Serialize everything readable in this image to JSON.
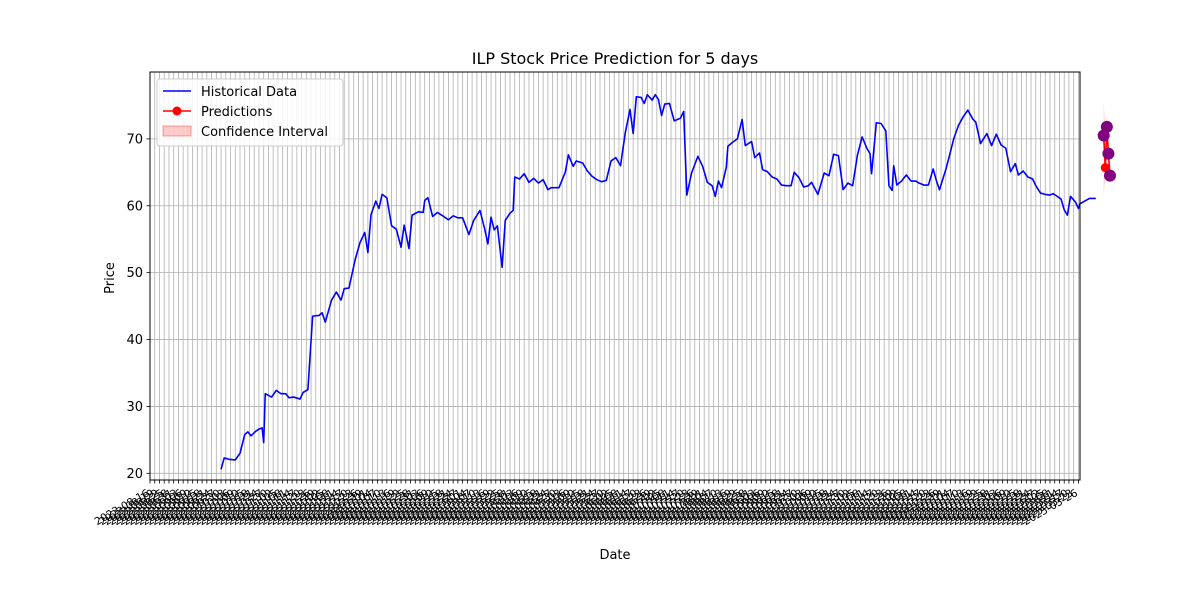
{
  "chart_data": {
    "type": "line",
    "title": "ILP Stock Price Prediction for 5 days",
    "xlabel": "Date",
    "ylabel": "Price",
    "ylim": [
      19,
      80
    ],
    "yticks": [
      20,
      30,
      40,
      50,
      60,
      70
    ],
    "grid": true,
    "legend_position": "top-left",
    "x_start": "2023-08-16",
    "x_end": "2025-03-27",
    "xtick_start": "2023-08-16",
    "xtick_end": "2025-03-27",
    "xtick_step_days": 3,
    "series": [
      {
        "name": "Historical Data",
        "color": "#0000ff",
        "points": [
          [
            "2023-09-30",
            20.6
          ],
          [
            "2023-10-02",
            22.3
          ],
          [
            "2023-10-05",
            22.1
          ],
          [
            "2023-10-09",
            22.0
          ],
          [
            "2023-10-12",
            23.0
          ],
          [
            "2023-10-15",
            25.8
          ],
          [
            "2023-10-17",
            26.2
          ],
          [
            "2023-10-19",
            25.6
          ],
          [
            "2023-10-22",
            26.3
          ],
          [
            "2023-10-24",
            26.6
          ],
          [
            "2023-10-26",
            26.8
          ],
          [
            "2023-10-27",
            24.6
          ],
          [
            "2023-10-28",
            31.9
          ],
          [
            "2023-11-01",
            31.4
          ],
          [
            "2023-11-04",
            32.4
          ],
          [
            "2023-11-07",
            31.9
          ],
          [
            "2023-11-10",
            31.9
          ],
          [
            "2023-11-12",
            31.3
          ],
          [
            "2023-11-15",
            31.4
          ],
          [
            "2023-11-19",
            31.1
          ],
          [
            "2023-11-21",
            32.1
          ],
          [
            "2023-11-24",
            32.5
          ],
          [
            "2023-11-27",
            43.5
          ],
          [
            "2023-12-01",
            43.6
          ],
          [
            "2023-12-03",
            44.0
          ],
          [
            "2023-12-05",
            42.6
          ],
          [
            "2023-12-09",
            45.9
          ],
          [
            "2023-12-12",
            47.1
          ],
          [
            "2023-12-15",
            45.9
          ],
          [
            "2023-12-17",
            47.6
          ],
          [
            "2023-12-20",
            47.7
          ],
          [
            "2023-12-24",
            52.0
          ],
          [
            "2023-12-27",
            54.5
          ],
          [
            "2023-12-30",
            56.0
          ],
          [
            "2024-01-01",
            53.0
          ],
          [
            "2024-01-03",
            58.7
          ],
          [
            "2024-01-06",
            60.7
          ],
          [
            "2024-01-08",
            59.6
          ],
          [
            "2024-01-10",
            61.7
          ],
          [
            "2024-01-13",
            61.2
          ],
          [
            "2024-01-16",
            57.0
          ],
          [
            "2024-01-19",
            56.5
          ],
          [
            "2024-01-22",
            53.8
          ],
          [
            "2024-01-24",
            57.1
          ],
          [
            "2024-01-27",
            53.6
          ],
          [
            "2024-01-29",
            58.6
          ],
          [
            "2024-02-02",
            59.1
          ],
          [
            "2024-02-05",
            59.0
          ],
          [
            "2024-02-06",
            60.8
          ],
          [
            "2024-02-08",
            61.2
          ],
          [
            "2024-02-11",
            58.4
          ],
          [
            "2024-02-14",
            59.0
          ],
          [
            "2024-02-18",
            58.4
          ],
          [
            "2024-02-21",
            57.9
          ],
          [
            "2024-02-24",
            58.5
          ],
          [
            "2024-02-27",
            58.2
          ],
          [
            "2024-03-01",
            58.2
          ],
          [
            "2024-03-05",
            55.7
          ],
          [
            "2024-03-08",
            57.8
          ],
          [
            "2024-03-12",
            59.3
          ],
          [
            "2024-03-15",
            56.5
          ],
          [
            "2024-03-17",
            54.3
          ],
          [
            "2024-03-19",
            58.3
          ],
          [
            "2024-03-21",
            56.4
          ],
          [
            "2024-03-23",
            57.0
          ],
          [
            "2024-03-26",
            50.8
          ],
          [
            "2024-03-28",
            57.8
          ],
          [
            "2024-03-31",
            58.9
          ],
          [
            "2024-04-02",
            59.3
          ],
          [
            "2024-04-03",
            64.3
          ],
          [
            "2024-04-06",
            64.0
          ],
          [
            "2024-04-09",
            64.8
          ],
          [
            "2024-04-12",
            63.5
          ],
          [
            "2024-04-15",
            64.1
          ],
          [
            "2024-04-18",
            63.4
          ],
          [
            "2024-04-21",
            63.9
          ],
          [
            "2024-04-24",
            62.4
          ],
          [
            "2024-04-26",
            62.7
          ],
          [
            "2024-05-01",
            62.7
          ],
          [
            "2024-05-05",
            65.0
          ],
          [
            "2024-05-07",
            67.6
          ],
          [
            "2024-05-10",
            65.9
          ],
          [
            "2024-05-12",
            66.7
          ],
          [
            "2024-05-16",
            66.4
          ],
          [
            "2024-05-19",
            65.2
          ],
          [
            "2024-05-22",
            64.4
          ],
          [
            "2024-05-25",
            63.9
          ],
          [
            "2024-05-28",
            63.6
          ],
          [
            "2024-05-31",
            63.8
          ],
          [
            "2024-06-03",
            66.7
          ],
          [
            "2024-06-06",
            67.2
          ],
          [
            "2024-06-09",
            66.0
          ],
          [
            "2024-06-12",
            70.9
          ],
          [
            "2024-06-15",
            74.4
          ],
          [
            "2024-06-17",
            70.8
          ],
          [
            "2024-06-19",
            76.3
          ],
          [
            "2024-06-22",
            76.2
          ],
          [
            "2024-06-24",
            75.3
          ],
          [
            "2024-06-26",
            76.6
          ],
          [
            "2024-06-29",
            75.8
          ],
          [
            "2024-07-01",
            76.6
          ],
          [
            "2024-07-03",
            75.9
          ],
          [
            "2024-07-05",
            73.5
          ],
          [
            "2024-07-07",
            75.2
          ],
          [
            "2024-07-10",
            75.3
          ],
          [
            "2024-07-13",
            72.7
          ],
          [
            "2024-07-17",
            73.1
          ],
          [
            "2024-07-19",
            74.1
          ],
          [
            "2024-07-21",
            61.6
          ],
          [
            "2024-07-24",
            64.9
          ],
          [
            "2024-07-28",
            67.4
          ],
          [
            "2024-07-31",
            65.9
          ],
          [
            "2024-08-03",
            63.5
          ],
          [
            "2024-08-06",
            63.0
          ],
          [
            "2024-08-08",
            61.4
          ],
          [
            "2024-08-10",
            63.7
          ],
          [
            "2024-08-12",
            62.7
          ],
          [
            "2024-08-15",
            65.8
          ],
          [
            "2024-08-16",
            68.9
          ],
          [
            "2024-08-19",
            69.5
          ],
          [
            "2024-08-22",
            70.0
          ],
          [
            "2024-08-25",
            72.9
          ],
          [
            "2024-08-27",
            69.0
          ],
          [
            "2024-08-31",
            69.6
          ],
          [
            "2024-09-02",
            67.2
          ],
          [
            "2024-09-05",
            67.9
          ],
          [
            "2024-09-07",
            65.4
          ],
          [
            "2024-09-10",
            65.1
          ],
          [
            "2024-09-13",
            64.3
          ],
          [
            "2024-09-16",
            64.0
          ],
          [
            "2024-09-19",
            63.1
          ],
          [
            "2024-09-22",
            63.0
          ],
          [
            "2024-09-25",
            63.0
          ],
          [
            "2024-09-27",
            65.0
          ],
          [
            "2024-09-30",
            64.2
          ],
          [
            "2024-10-03",
            62.8
          ],
          [
            "2024-10-06",
            63.0
          ],
          [
            "2024-10-08",
            63.5
          ],
          [
            "2024-10-12",
            61.7
          ],
          [
            "2024-10-16",
            64.9
          ],
          [
            "2024-10-19",
            64.5
          ],
          [
            "2024-10-22",
            67.7
          ],
          [
            "2024-10-25",
            67.5
          ],
          [
            "2024-10-28",
            62.4
          ],
          [
            "2024-10-31",
            63.4
          ],
          [
            "2024-11-03",
            63.0
          ],
          [
            "2024-11-06",
            67.5
          ],
          [
            "2024-11-09",
            70.3
          ],
          [
            "2024-11-12",
            68.6
          ],
          [
            "2024-11-14",
            67.8
          ],
          [
            "2024-11-15",
            64.8
          ],
          [
            "2024-11-18",
            72.4
          ],
          [
            "2024-11-21",
            72.3
          ],
          [
            "2024-11-24",
            71.2
          ],
          [
            "2024-11-26",
            63.0
          ],
          [
            "2024-11-28",
            62.3
          ],
          [
            "2024-11-29",
            66.0
          ],
          [
            "2024-12-01",
            63.1
          ],
          [
            "2024-12-04",
            63.7
          ],
          [
            "2024-12-07",
            64.6
          ],
          [
            "2024-12-10",
            63.7
          ],
          [
            "2024-12-13",
            63.7
          ],
          [
            "2024-12-15",
            63.4
          ],
          [
            "2024-12-18",
            63.1
          ],
          [
            "2024-12-21",
            63.1
          ],
          [
            "2024-12-24",
            65.5
          ],
          [
            "2024-12-26",
            63.8
          ],
          [
            "2024-12-28",
            62.4
          ],
          [
            "2025-01-01",
            65.4
          ],
          [
            "2025-01-03",
            67.2
          ],
          [
            "2025-01-06",
            70.0
          ],
          [
            "2025-01-09",
            72.0
          ],
          [
            "2025-01-12",
            73.3
          ],
          [
            "2025-01-15",
            74.3
          ],
          [
            "2025-01-18",
            73.0
          ],
          [
            "2025-01-20",
            72.5
          ],
          [
            "2025-01-23",
            69.3
          ],
          [
            "2025-01-27",
            70.8
          ],
          [
            "2025-01-30",
            69.0
          ],
          [
            "2025-02-02",
            70.7
          ],
          [
            "2025-02-05",
            69.1
          ],
          [
            "2025-02-08",
            68.6
          ],
          [
            "2025-02-11",
            65.1
          ],
          [
            "2025-02-14",
            66.3
          ],
          [
            "2025-02-16",
            64.6
          ],
          [
            "2025-02-19",
            65.2
          ],
          [
            "2025-02-22",
            64.3
          ],
          [
            "2025-02-25",
            64.0
          ],
          [
            "2025-02-27",
            63.0
          ],
          [
            "2025-03-02",
            61.9
          ],
          [
            "2025-03-05",
            61.7
          ],
          [
            "2025-03-08",
            61.6
          ],
          [
            "2025-03-10",
            61.8
          ],
          [
            "2025-03-12",
            61.5
          ],
          [
            "2025-03-15",
            61.0
          ],
          [
            "2025-03-17",
            59.4
          ],
          [
            "2025-03-19",
            58.6
          ],
          [
            "2025-03-21",
            61.4
          ],
          [
            "2025-03-24",
            60.6
          ],
          [
            "2025-03-26",
            59.6
          ],
          [
            "2025-03-27",
            60.3
          ],
          [
            "2025-03-30",
            60.7
          ],
          [
            "2025-04-02",
            61.1
          ],
          [
            "2025-04-06",
            61.1
          ]
        ]
      },
      {
        "name": "Predictions",
        "color": "#ff0000",
        "marker_color": "#800080",
        "points": [
          [
            "2025-04-11",
            70.5
          ],
          [
            "2025-04-12",
            65.7
          ],
          [
            "2025-04-13",
            71.8
          ],
          [
            "2025-04-14",
            67.8
          ],
          [
            "2025-04-15",
            64.5
          ]
        ]
      }
    ],
    "confidence_interval": {
      "name": "Confidence Interval",
      "color": "#ff0000",
      "lower": [
        61.5,
        64.5,
        67.0,
        65.0,
        64.0
      ],
      "upper": [
        75.5,
        71.0,
        73.5,
        69.0,
        66.5
      ]
    }
  }
}
